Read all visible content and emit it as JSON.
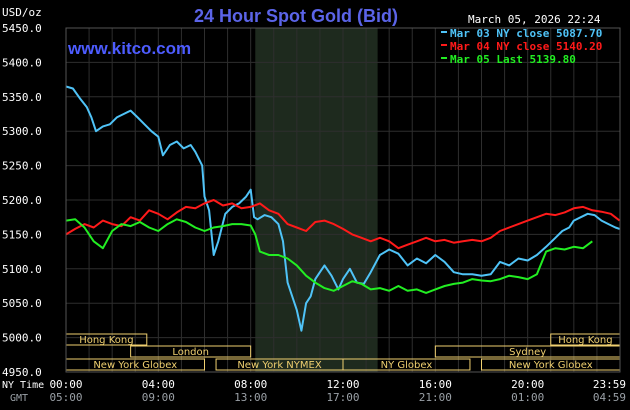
{
  "header": {
    "title": "24 Hour Spot Gold (Bid)",
    "unit": "USD/oz",
    "date_time": "March 05, 2026 22:24",
    "website": "www.kitco.com"
  },
  "colors": {
    "background": "#000000",
    "title": "#5b64e8",
    "grid": "#2e2e2e",
    "shaded_region": "#1e2a1e",
    "session_bar": "#f0d070",
    "series_cyan": "#4fc3f7",
    "series_red": "#ff1a1a",
    "series_green": "#22ee22"
  },
  "axis_side_labels": {
    "ny_time": "NY Time",
    "gmt": "GMT"
  },
  "sessions": [
    {
      "label": "Hong Kong",
      "start": 0,
      "end": 3.5,
      "row": 1
    },
    {
      "label": "Hong Kong",
      "start": 21,
      "end": 24,
      "row": 1
    },
    {
      "label": "London",
      "start": 2.8,
      "end": 8,
      "row": 2
    },
    {
      "label": "Sydney",
      "start": 16,
      "end": 24,
      "row": 2
    },
    {
      "label": "New York Globex",
      "start": 0,
      "end": 6,
      "row": 3
    },
    {
      "label": "New York NYMEX",
      "start": 6.5,
      "end": 12,
      "row": 3
    },
    {
      "label": "New York Globex",
      "start": 18,
      "end": 24,
      "row": 3
    },
    {
      "label": "NY Globex",
      "start": 12,
      "end": 17.5,
      "row": 3
    }
  ],
  "chart_data": {
    "type": "line",
    "title": "24 Hour Spot Gold (Bid)",
    "ylabel": "USD/oz",
    "ylim": [
      4950,
      5450
    ],
    "yticks": [
      4950,
      5000,
      5050,
      5100,
      5150,
      5200,
      5250,
      5300,
      5350,
      5400,
      5450
    ],
    "ytick_labels": [
      "4950.0",
      "5000.0",
      "5050.0",
      "5100.0",
      "5150.0",
      "5200.0",
      "5250.0",
      "5300.0",
      "5350.0",
      "5400.0",
      "5450.0"
    ],
    "xlim": [
      0,
      24
    ],
    "xticks": [
      0,
      4,
      8,
      12,
      16,
      20,
      23.983
    ],
    "xtick_labels_ny": [
      "00:00",
      "04:00",
      "08:00",
      "12:00",
      "16:00",
      "20:00",
      "23:59"
    ],
    "xtick_labels_gmt": [
      "05:00",
      "09:00",
      "13:00",
      "17:00",
      "21:00",
      "01:00",
      "04:59"
    ],
    "shaded_region": [
      8.2,
      13.5
    ],
    "grid": true,
    "legend_position": "top-right",
    "series": [
      {
        "name": "Mar 03 NY close 5087.70",
        "color": "#4fc3f7",
        "points": [
          [
            0,
            5365
          ],
          [
            0.3,
            5362
          ],
          [
            0.6,
            5348
          ],
          [
            0.9,
            5335
          ],
          [
            1.1,
            5320
          ],
          [
            1.3,
            5300
          ],
          [
            1.6,
            5307
          ],
          [
            1.9,
            5310
          ],
          [
            2.2,
            5320
          ],
          [
            2.5,
            5325
          ],
          [
            2.8,
            5330
          ],
          [
            3.1,
            5320
          ],
          [
            3.4,
            5310
          ],
          [
            3.7,
            5300
          ],
          [
            4.0,
            5292
          ],
          [
            4.2,
            5265
          ],
          [
            4.5,
            5280
          ],
          [
            4.8,
            5285
          ],
          [
            5.1,
            5275
          ],
          [
            5.4,
            5280
          ],
          [
            5.6,
            5270
          ],
          [
            5.9,
            5250
          ],
          [
            6.0,
            5205
          ],
          [
            6.2,
            5185
          ],
          [
            6.4,
            5120
          ],
          [
            6.6,
            5140
          ],
          [
            6.9,
            5180
          ],
          [
            7.2,
            5190
          ],
          [
            7.5,
            5195
          ],
          [
            7.8,
            5205
          ],
          [
            8.0,
            5215
          ],
          [
            8.15,
            5175
          ],
          [
            8.3,
            5172
          ],
          [
            8.6,
            5178
          ],
          [
            8.9,
            5175
          ],
          [
            9.2,
            5165
          ],
          [
            9.4,
            5140
          ],
          [
            9.6,
            5080
          ],
          [
            9.8,
            5060
          ],
          [
            10.0,
            5040
          ],
          [
            10.2,
            5010
          ],
          [
            10.4,
            5050
          ],
          [
            10.6,
            5060
          ],
          [
            10.8,
            5085
          ],
          [
            11.0,
            5095
          ],
          [
            11.2,
            5105
          ],
          [
            11.5,
            5090
          ],
          [
            11.8,
            5070
          ],
          [
            12.0,
            5085
          ],
          [
            12.3,
            5100
          ],
          [
            12.6,
            5080
          ],
          [
            12.9,
            5078
          ],
          [
            13.2,
            5095
          ],
          [
            13.6,
            5120
          ],
          [
            14.0,
            5128
          ],
          [
            14.4,
            5122
          ],
          [
            14.8,
            5105
          ],
          [
            15.2,
            5115
          ],
          [
            15.6,
            5108
          ],
          [
            16.0,
            5120
          ],
          [
            16.4,
            5110
          ],
          [
            16.8,
            5095
          ],
          [
            17.2,
            5092
          ],
          [
            17.6,
            5092
          ],
          [
            18.0,
            5090
          ],
          [
            18.4,
            5092
          ],
          [
            18.8,
            5110
          ],
          [
            19.2,
            5105
          ],
          [
            19.6,
            5115
          ],
          [
            20.0,
            5112
          ],
          [
            20.4,
            5120
          ],
          [
            20.8,
            5132
          ],
          [
            21.2,
            5145
          ],
          [
            21.5,
            5155
          ],
          [
            21.8,
            5160
          ],
          [
            22.0,
            5170
          ],
          [
            22.3,
            5175
          ],
          [
            22.6,
            5180
          ],
          [
            22.9,
            5178
          ],
          [
            23.2,
            5170
          ],
          [
            23.5,
            5165
          ],
          [
            23.8,
            5160
          ],
          [
            23.983,
            5158
          ]
        ]
      },
      {
        "name": "Mar 04 NY close 5140.20",
        "color": "#ff1a1a",
        "points": [
          [
            0,
            5150
          ],
          [
            0.4,
            5158
          ],
          [
            0.8,
            5165
          ],
          [
            1.2,
            5160
          ],
          [
            1.6,
            5170
          ],
          [
            2.0,
            5165
          ],
          [
            2.4,
            5162
          ],
          [
            2.8,
            5175
          ],
          [
            3.2,
            5170
          ],
          [
            3.6,
            5185
          ],
          [
            4.0,
            5180
          ],
          [
            4.4,
            5172
          ],
          [
            4.8,
            5182
          ],
          [
            5.2,
            5190
          ],
          [
            5.6,
            5188
          ],
          [
            6.0,
            5195
          ],
          [
            6.4,
            5200
          ],
          [
            6.8,
            5192
          ],
          [
            7.2,
            5195
          ],
          [
            7.6,
            5188
          ],
          [
            8.0,
            5190
          ],
          [
            8.4,
            5195
          ],
          [
            8.8,
            5185
          ],
          [
            9.2,
            5180
          ],
          [
            9.6,
            5165
          ],
          [
            10.0,
            5160
          ],
          [
            10.4,
            5155
          ],
          [
            10.8,
            5168
          ],
          [
            11.2,
            5170
          ],
          [
            11.6,
            5165
          ],
          [
            12.0,
            5158
          ],
          [
            12.4,
            5150
          ],
          [
            12.8,
            5145
          ],
          [
            13.2,
            5140
          ],
          [
            13.6,
            5145
          ],
          [
            14.0,
            5140
          ],
          [
            14.4,
            5130
          ],
          [
            14.8,
            5135
          ],
          [
            15.2,
            5140
          ],
          [
            15.6,
            5145
          ],
          [
            16.0,
            5140
          ],
          [
            16.4,
            5142
          ],
          [
            16.8,
            5138
          ],
          [
            17.2,
            5140
          ],
          [
            17.6,
            5142
          ],
          [
            18.0,
            5140
          ],
          [
            18.4,
            5145
          ],
          [
            18.8,
            5155
          ],
          [
            19.2,
            5160
          ],
          [
            19.6,
            5165
          ],
          [
            20.0,
            5170
          ],
          [
            20.4,
            5175
          ],
          [
            20.8,
            5180
          ],
          [
            21.2,
            5178
          ],
          [
            21.6,
            5182
          ],
          [
            22.0,
            5188
          ],
          [
            22.4,
            5190
          ],
          [
            22.8,
            5185
          ],
          [
            23.2,
            5183
          ],
          [
            23.6,
            5180
          ],
          [
            23.983,
            5170
          ]
        ]
      },
      {
        "name": "Mar 05 Last 5139.80",
        "color": "#22ee22",
        "points": [
          [
            0,
            5170
          ],
          [
            0.4,
            5172
          ],
          [
            0.8,
            5160
          ],
          [
            1.2,
            5140
          ],
          [
            1.6,
            5130
          ],
          [
            2.0,
            5155
          ],
          [
            2.4,
            5165
          ],
          [
            2.8,
            5162
          ],
          [
            3.2,
            5168
          ],
          [
            3.6,
            5160
          ],
          [
            4.0,
            5155
          ],
          [
            4.4,
            5165
          ],
          [
            4.8,
            5172
          ],
          [
            5.2,
            5168
          ],
          [
            5.6,
            5160
          ],
          [
            6.0,
            5155
          ],
          [
            6.4,
            5160
          ],
          [
            6.8,
            5162
          ],
          [
            7.2,
            5165
          ],
          [
            7.6,
            5165
          ],
          [
            8.0,
            5163
          ],
          [
            8.2,
            5150
          ],
          [
            8.4,
            5125
          ],
          [
            8.8,
            5120
          ],
          [
            9.2,
            5120
          ],
          [
            9.6,
            5115
          ],
          [
            10.0,
            5105
          ],
          [
            10.4,
            5090
          ],
          [
            10.8,
            5080
          ],
          [
            11.2,
            5072
          ],
          [
            11.6,
            5068
          ],
          [
            12.0,
            5075
          ],
          [
            12.4,
            5082
          ],
          [
            12.8,
            5078
          ],
          [
            13.2,
            5070
          ],
          [
            13.6,
            5072
          ],
          [
            14.0,
            5068
          ],
          [
            14.4,
            5075
          ],
          [
            14.8,
            5068
          ],
          [
            15.2,
            5070
          ],
          [
            15.6,
            5065
          ],
          [
            16.0,
            5070
          ],
          [
            16.4,
            5075
          ],
          [
            16.8,
            5078
          ],
          [
            17.2,
            5080
          ],
          [
            17.6,
            5085
          ],
          [
            18.0,
            5083
          ],
          [
            18.4,
            5082
          ],
          [
            18.8,
            5085
          ],
          [
            19.2,
            5090
          ],
          [
            19.6,
            5088
          ],
          [
            20.0,
            5085
          ],
          [
            20.4,
            5092
          ],
          [
            20.8,
            5125
          ],
          [
            21.2,
            5130
          ],
          [
            21.6,
            5128
          ],
          [
            22.0,
            5132
          ],
          [
            22.4,
            5130
          ],
          [
            22.8,
            5140
          ]
        ]
      }
    ]
  }
}
